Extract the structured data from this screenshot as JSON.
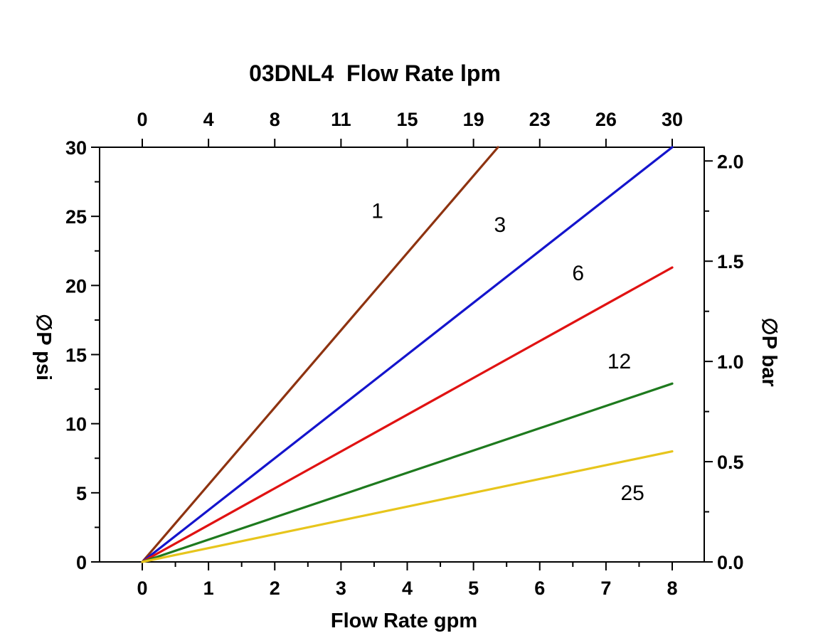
{
  "chart_data": {
    "type": "line",
    "title": "03DNL4  Flow Rate lpm",
    "xlabel": "Flow Rate gpm",
    "ylabel_left": "∅P psi",
    "ylabel_right": "∅P bar",
    "axis_color": "#000000",
    "text_color": "#000000",
    "x_axis_bottom": {
      "lim": [
        0,
        8
      ],
      "ticks": [
        0,
        1,
        2,
        3,
        4,
        5,
        6,
        7,
        8
      ],
      "minor_step": 0.5,
      "units": "gpm"
    },
    "x_axis_top": {
      "tick_labels": [
        "0",
        "4",
        "8",
        "11",
        "15",
        "19",
        "23",
        "26",
        "30"
      ],
      "units": "lpm"
    },
    "y_axis_left": {
      "lim": [
        0,
        30
      ],
      "ticks": [
        0,
        5,
        10,
        15,
        20,
        25,
        30
      ],
      "minor_step": 2.5,
      "units": "psi"
    },
    "y_axis_right": {
      "tick_labels": [
        "0.0",
        "0.5",
        "1.0",
        "1.5",
        "2.0"
      ],
      "tick_values_bar": [
        0,
        0.5,
        1.0,
        1.5,
        2.0
      ],
      "minor_step_bar": 0.25,
      "psi_per_bar": 14.5038,
      "units": "bar"
    },
    "series": [
      {
        "label": "1",
        "color": "#8e3310",
        "points": [
          [
            0,
            0
          ],
          [
            5.37,
            30
          ]
        ],
        "label_at": [
          3.55,
          25.4
        ]
      },
      {
        "label": "3",
        "color": "#1414cc",
        "points": [
          [
            0,
            0
          ],
          [
            8,
            30
          ]
        ],
        "label_at": [
          5.4,
          24.4
        ]
      },
      {
        "label": "6",
        "color": "#e01212",
        "points": [
          [
            0,
            0
          ],
          [
            8,
            21.3
          ]
        ],
        "label_at": [
          6.58,
          20.9
        ]
      },
      {
        "label": "12",
        "color": "#1e7a1e",
        "points": [
          [
            0,
            0
          ],
          [
            8,
            12.9
          ]
        ],
        "label_at": [
          7.2,
          14.5
        ]
      },
      {
        "label": "25",
        "color": "#e7c51c",
        "points": [
          [
            0,
            0
          ],
          [
            8,
            8.0
          ]
        ],
        "label_at": [
          7.4,
          5.0
        ]
      }
    ]
  }
}
